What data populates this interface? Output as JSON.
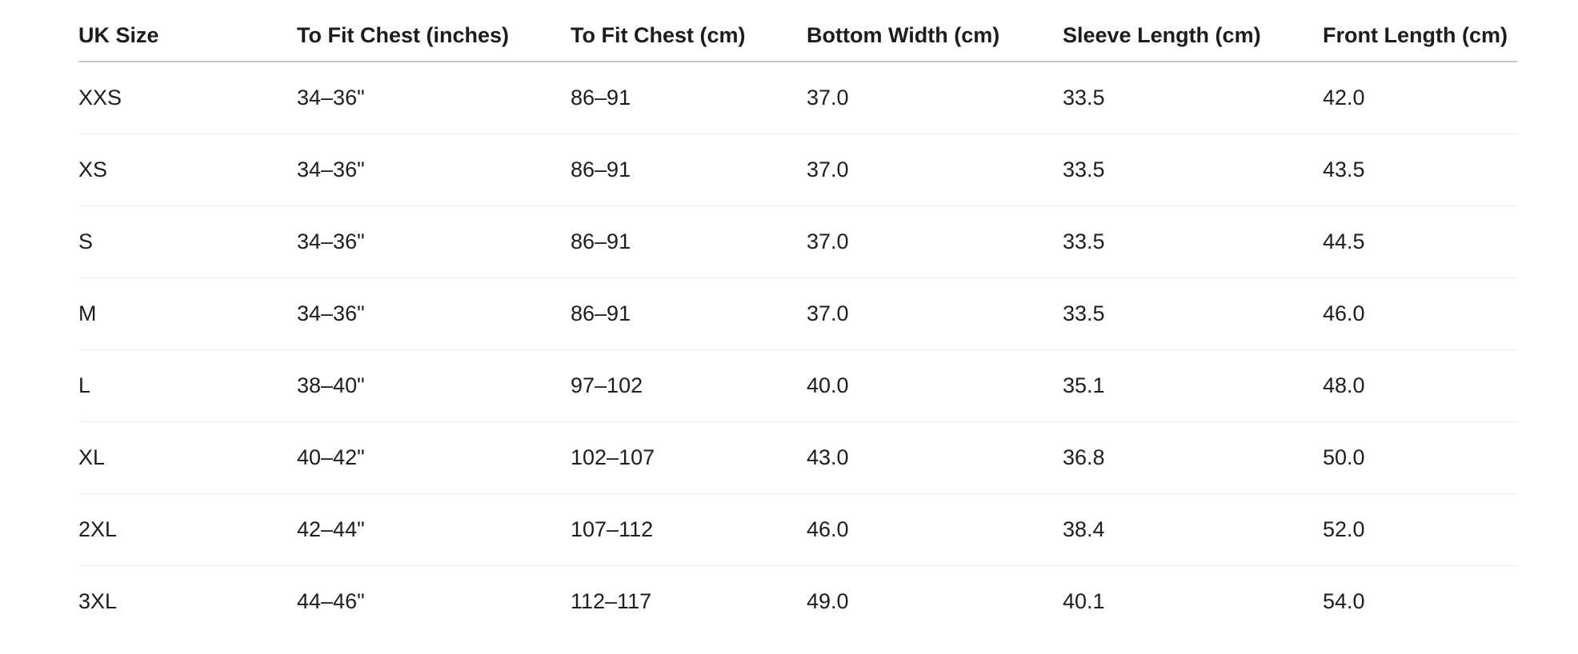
{
  "table": {
    "headers": [
      "UK Size",
      "To Fit Chest (inches)",
      "To Fit Chest (cm)",
      "Bottom Width (cm)",
      "Sleeve Length (cm)",
      "Front Length (cm)"
    ],
    "rows": [
      [
        "XXS",
        "34–36\"",
        "86–91",
        "37.0",
        "33.5",
        "42.0"
      ],
      [
        "XS",
        "34–36\"",
        "86–91",
        "37.0",
        "33.5",
        "43.5"
      ],
      [
        "S",
        "34–36\"",
        "86–91",
        "37.0",
        "33.5",
        "44.5"
      ],
      [
        "M",
        "34–36\"",
        "86–91",
        "37.0",
        "33.5",
        "46.0"
      ],
      [
        "L",
        "38–40\"",
        "97–102",
        "40.0",
        "35.1",
        "48.0"
      ],
      [
        "XL",
        "40–42\"",
        "102–107",
        "43.0",
        "36.8",
        "50.0"
      ],
      [
        "2XL",
        "42–44\"",
        "107–112",
        "46.0",
        "38.4",
        "52.0"
      ],
      [
        "3XL",
        "44–46\"",
        "112–117",
        "49.0",
        "40.1",
        "54.0"
      ]
    ]
  }
}
